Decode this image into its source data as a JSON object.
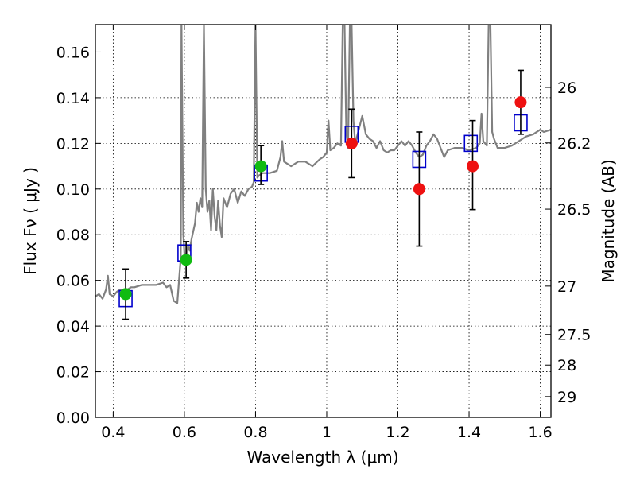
{
  "chart_data": {
    "type": "scatter",
    "xlabel": "Wavelength  λ (μm)",
    "ylabel": "Flux  Fν  ( μJy )",
    "ylabel_right": "Magnitude (AB)",
    "xlim": [
      0.35,
      1.63
    ],
    "ylim": [
      0.0,
      0.172
    ],
    "x_ticks": [
      0.4,
      0.6,
      0.8,
      1.0,
      1.2,
      1.4,
      1.6
    ],
    "x_tick_labels": [
      "0.4",
      "0.6",
      "0.8",
      "1",
      "1.2",
      "1.4",
      "1.6"
    ],
    "y_ticks": [
      0.0,
      0.02,
      0.04,
      0.06,
      0.08,
      0.1,
      0.12,
      0.14,
      0.16
    ],
    "y_tick_labels": [
      "0.00",
      "0.02",
      "0.04",
      "0.06",
      "0.08",
      "0.10",
      "0.12",
      "0.14",
      "0.16"
    ],
    "right_ticks": [
      {
        "label": "26",
        "flux": 0.1445
      },
      {
        "label": "26.2",
        "flux": 0.1202
      },
      {
        "label": "26.5",
        "flux": 0.0912
      },
      {
        "label": "27",
        "flux": 0.0575
      },
      {
        "label": "27.5",
        "flux": 0.0363
      },
      {
        "label": "28",
        "flux": 0.0229
      },
      {
        "label": "29",
        "flux": 0.0091
      }
    ],
    "grid": true,
    "colors": {
      "template": "#808080",
      "model_box": "#0000cc",
      "detection_green": "#11bb11",
      "detection_red": "#ee1111",
      "errorbar": "#000000"
    },
    "series": [
      {
        "kind": "line",
        "points": [
          [
            0.35,
            0.053
          ],
          [
            0.36,
            0.054
          ],
          [
            0.37,
            0.052
          ],
          [
            0.38,
            0.056
          ],
          [
            0.385,
            0.062
          ],
          [
            0.39,
            0.054
          ],
          [
            0.4,
            0.053
          ],
          [
            0.41,
            0.055
          ],
          [
            0.42,
            0.056
          ],
          [
            0.43,
            0.055
          ],
          [
            0.44,
            0.056
          ],
          [
            0.45,
            0.057
          ],
          [
            0.46,
            0.057
          ],
          [
            0.48,
            0.058
          ],
          [
            0.5,
            0.058
          ],
          [
            0.52,
            0.058
          ],
          [
            0.54,
            0.059
          ],
          [
            0.55,
            0.057
          ],
          [
            0.56,
            0.058
          ],
          [
            0.57,
            0.051
          ],
          [
            0.58,
            0.05
          ],
          [
            0.585,
            0.06
          ],
          [
            0.59,
            0.07
          ],
          [
            0.592,
            0.172
          ],
          [
            0.597,
            0.08
          ],
          [
            0.6,
            0.072
          ],
          [
            0.605,
            0.07
          ],
          [
            0.61,
            0.075
          ],
          [
            0.615,
            0.073
          ],
          [
            0.62,
            0.078
          ],
          [
            0.63,
            0.085
          ],
          [
            0.635,
            0.094
          ],
          [
            0.64,
            0.09
          ],
          [
            0.645,
            0.096
          ],
          [
            0.65,
            0.092
          ],
          [
            0.655,
            0.172
          ],
          [
            0.66,
            0.1
          ],
          [
            0.665,
            0.09
          ],
          [
            0.67,
            0.095
          ],
          [
            0.675,
            0.082
          ],
          [
            0.68,
            0.1
          ],
          [
            0.685,
            0.088
          ],
          [
            0.69,
            0.082
          ],
          [
            0.695,
            0.095
          ],
          [
            0.7,
            0.084
          ],
          [
            0.705,
            0.079
          ],
          [
            0.71,
            0.096
          ],
          [
            0.72,
            0.092
          ],
          [
            0.73,
            0.098
          ],
          [
            0.74,
            0.1
          ],
          [
            0.75,
            0.094
          ],
          [
            0.76,
            0.099
          ],
          [
            0.77,
            0.097
          ],
          [
            0.78,
            0.1
          ],
          [
            0.79,
            0.101
          ],
          [
            0.795,
            0.103
          ],
          [
            0.8,
            0.172
          ],
          [
            0.805,
            0.105
          ],
          [
            0.81,
            0.106
          ],
          [
            0.82,
            0.107
          ],
          [
            0.84,
            0.107
          ],
          [
            0.86,
            0.108
          ],
          [
            0.87,
            0.114
          ],
          [
            0.875,
            0.121
          ],
          [
            0.88,
            0.112
          ],
          [
            0.9,
            0.11
          ],
          [
            0.92,
            0.112
          ],
          [
            0.94,
            0.112
          ],
          [
            0.96,
            0.11
          ],
          [
            0.98,
            0.113
          ],
          [
            0.99,
            0.114
          ],
          [
            1.0,
            0.116
          ],
          [
            1.005,
            0.13
          ],
          [
            1.01,
            0.117
          ],
          [
            1.02,
            0.118
          ],
          [
            1.03,
            0.12
          ],
          [
            1.04,
            0.119
          ],
          [
            1.045,
            0.172
          ],
          [
            1.05,
            0.172
          ],
          [
            1.055,
            0.125
          ],
          [
            1.06,
            0.118
          ],
          [
            1.065,
            0.172
          ],
          [
            1.07,
            0.172
          ],
          [
            1.075,
            0.13
          ],
          [
            1.08,
            0.12
          ],
          [
            1.09,
            0.126
          ],
          [
            1.1,
            0.132
          ],
          [
            1.11,
            0.124
          ],
          [
            1.12,
            0.122
          ],
          [
            1.13,
            0.121
          ],
          [
            1.14,
            0.118
          ],
          [
            1.15,
            0.121
          ],
          [
            1.16,
            0.117
          ],
          [
            1.17,
            0.116
          ],
          [
            1.18,
            0.117
          ],
          [
            1.19,
            0.117
          ],
          [
            1.2,
            0.119
          ],
          [
            1.21,
            0.121
          ],
          [
            1.22,
            0.119
          ],
          [
            1.23,
            0.121
          ],
          [
            1.24,
            0.119
          ],
          [
            1.25,
            0.116
          ],
          [
            1.26,
            0.114
          ],
          [
            1.27,
            0.115
          ],
          [
            1.28,
            0.119
          ],
          [
            1.29,
            0.121
          ],
          [
            1.3,
            0.124
          ],
          [
            1.31,
            0.122
          ],
          [
            1.32,
            0.118
          ],
          [
            1.33,
            0.114
          ],
          [
            1.34,
            0.117
          ],
          [
            1.36,
            0.118
          ],
          [
            1.38,
            0.118
          ],
          [
            1.4,
            0.117
          ],
          [
            1.42,
            0.118
          ],
          [
            1.43,
            0.12
          ],
          [
            1.435,
            0.133
          ],
          [
            1.44,
            0.121
          ],
          [
            1.45,
            0.119
          ],
          [
            1.455,
            0.172
          ],
          [
            1.46,
            0.172
          ],
          [
            1.465,
            0.125
          ],
          [
            1.47,
            0.122
          ],
          [
            1.48,
            0.118
          ],
          [
            1.5,
            0.118
          ],
          [
            1.52,
            0.119
          ],
          [
            1.54,
            0.121
          ],
          [
            1.56,
            0.123
          ],
          [
            1.58,
            0.124
          ],
          [
            1.6,
            0.126
          ],
          [
            1.61,
            0.125
          ],
          [
            1.63,
            0.126
          ]
        ]
      },
      {
        "kind": "model_boxes",
        "points": [
          [
            0.435,
            0.052
          ],
          [
            0.6,
            0.072
          ],
          [
            0.815,
            0.107
          ],
          [
            1.07,
            0.124
          ],
          [
            1.26,
            0.113
          ],
          [
            1.405,
            0.12
          ],
          [
            1.545,
            0.129
          ]
        ]
      },
      {
        "kind": "detections",
        "points": [
          {
            "x": 0.435,
            "y": 0.054,
            "err_lo": 0.043,
            "err_hi": 0.065,
            "color": "green"
          },
          {
            "x": 0.605,
            "y": 0.069,
            "err_lo": 0.061,
            "err_hi": 0.077,
            "color": "green"
          },
          {
            "x": 0.815,
            "y": 0.11,
            "err_lo": 0.102,
            "err_hi": 0.119,
            "color": "green"
          },
          {
            "x": 1.07,
            "y": 0.12,
            "err_lo": 0.105,
            "err_hi": 0.135,
            "color": "red"
          },
          {
            "x": 1.26,
            "y": 0.1,
            "err_lo": 0.075,
            "err_hi": 0.125,
            "color": "red"
          },
          {
            "x": 1.41,
            "y": 0.11,
            "err_lo": 0.091,
            "err_hi": 0.13,
            "color": "red"
          },
          {
            "x": 1.545,
            "y": 0.138,
            "err_lo": 0.124,
            "err_hi": 0.152,
            "color": "red"
          }
        ]
      }
    ]
  }
}
